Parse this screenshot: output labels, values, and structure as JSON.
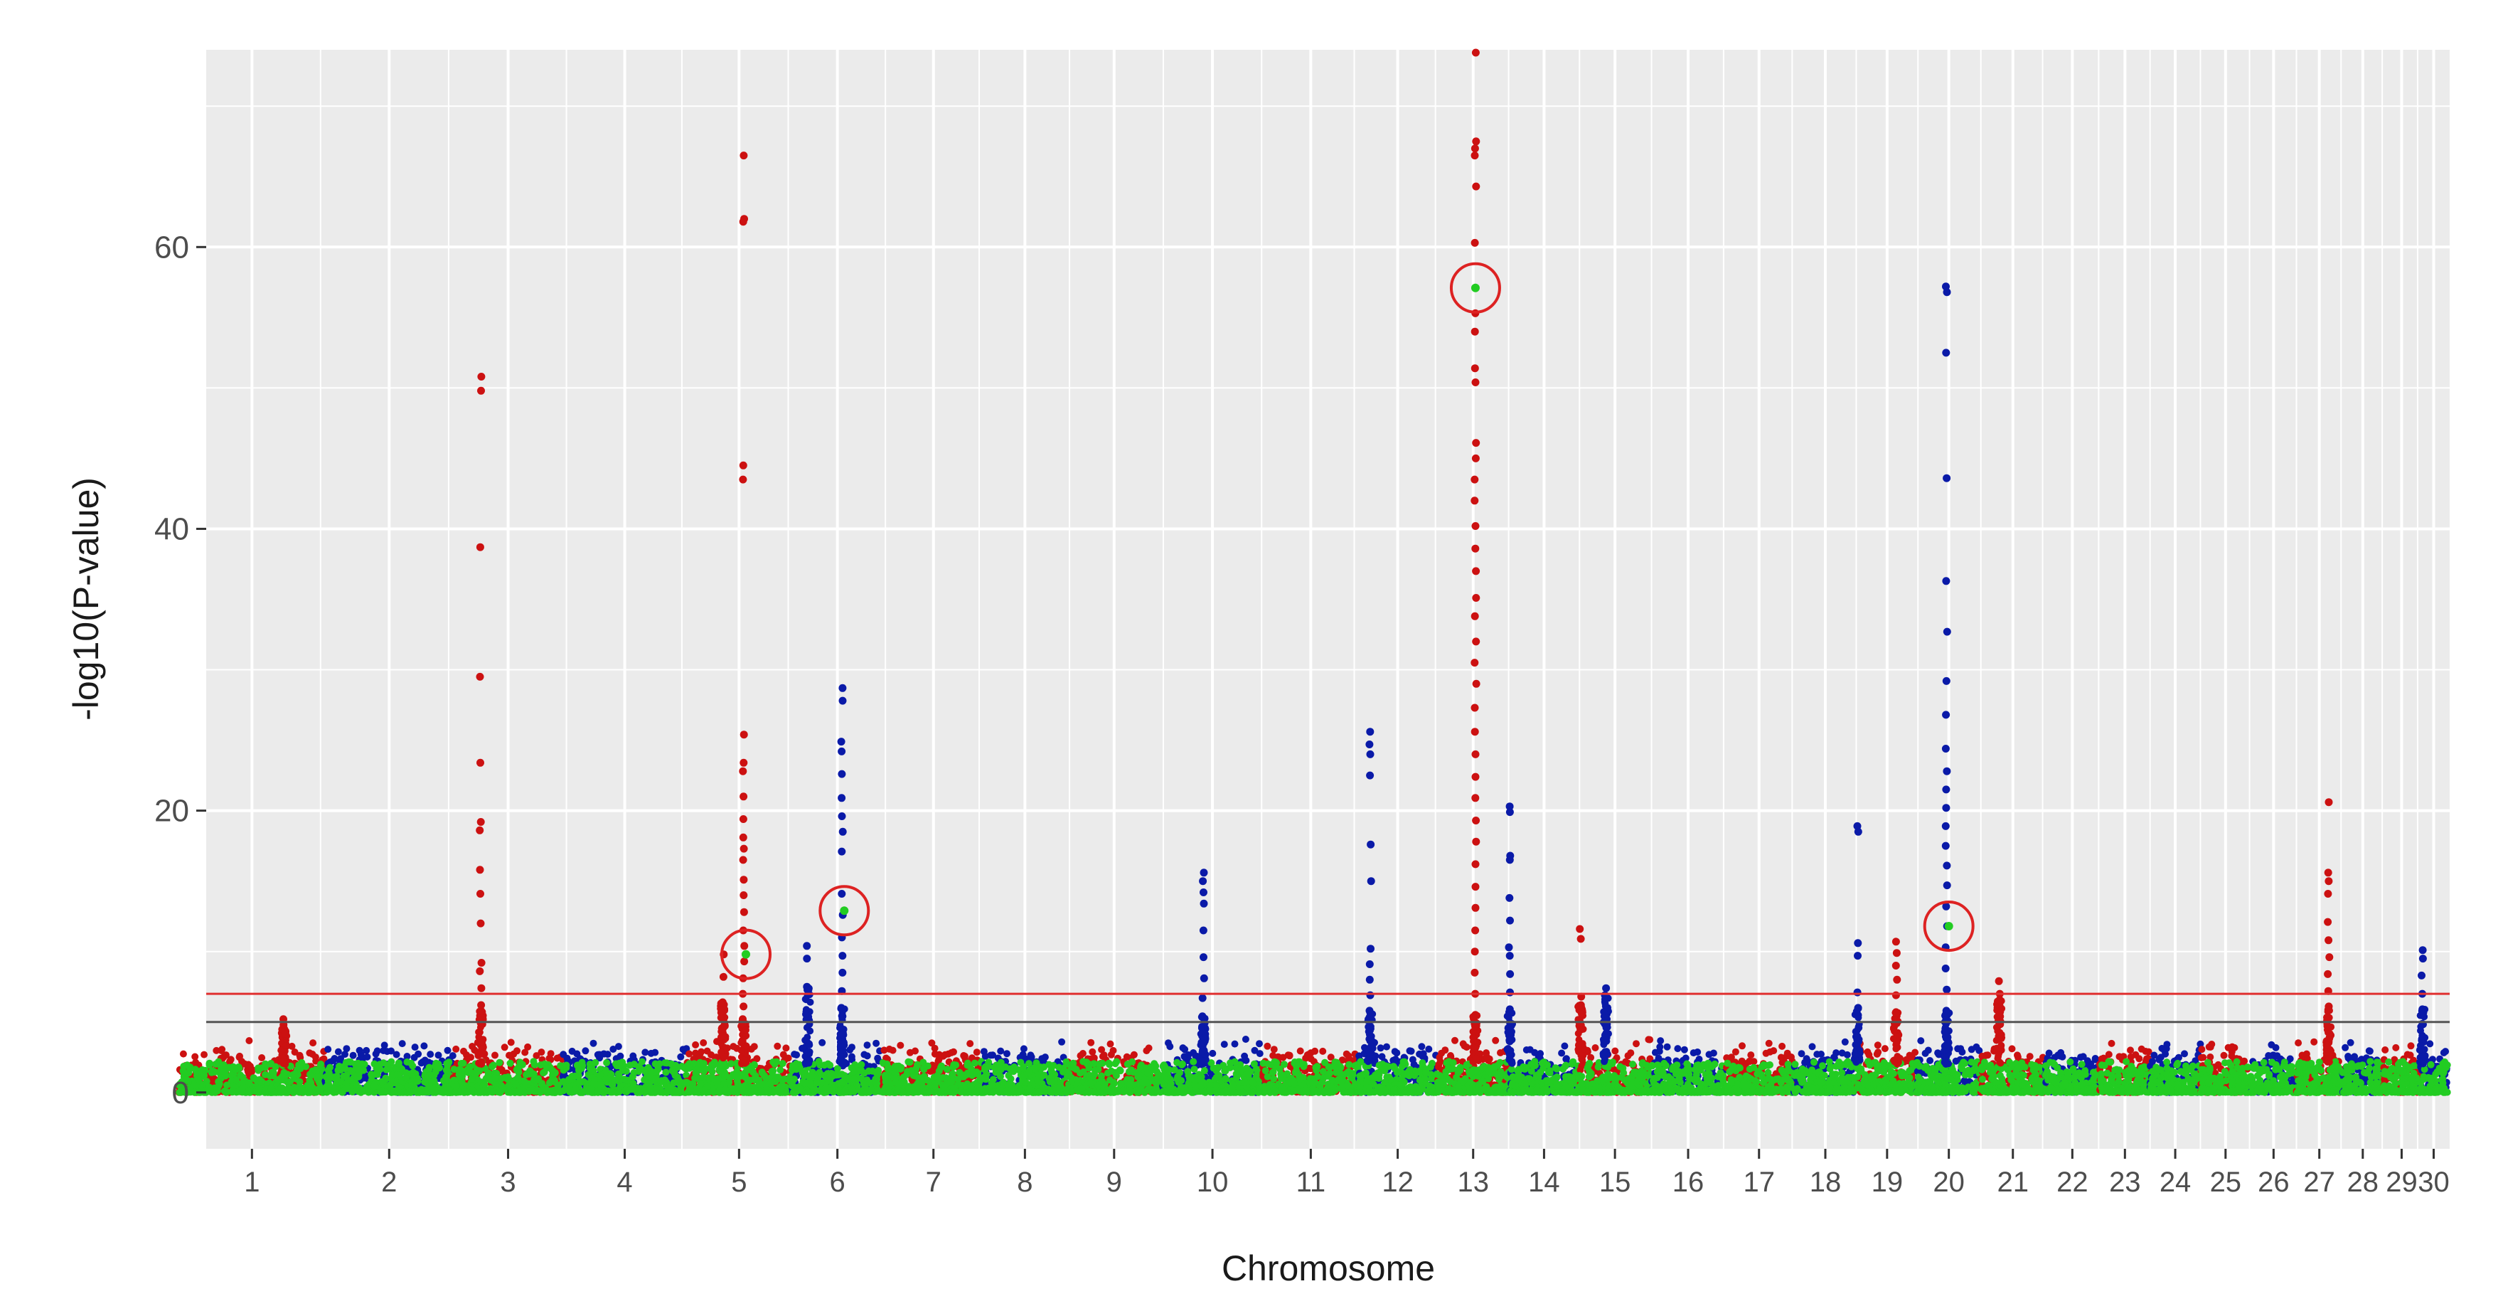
{
  "chart_data": {
    "type": "scatter",
    "subtype": "manhattan",
    "title": "",
    "xlabel": "Chromosome",
    "ylabel": "-log10(P-value)",
    "ylim": [
      -4,
      74
    ],
    "y_ticks": [
      0,
      20,
      40,
      60
    ],
    "grid": true,
    "legend": "none",
    "colors": {
      "panel_background": "#ebebeb",
      "grid": "#ffffff",
      "odd_chromosomes": "#cc1111",
      "even_chromosomes": "#0a1aa8",
      "highlighted_snps": "#22cc22",
      "threshold_red": "#e03030",
      "threshold_black": "#555555",
      "circle_marker": "#dd2222"
    },
    "thresholds": [
      {
        "value": 7.0,
        "color": "#e03030"
      },
      {
        "value": 5.0,
        "color": "#555555"
      }
    ],
    "chromosomes": [
      {
        "label": "1",
        "center": 0.8,
        "width": 3.2
      },
      {
        "label": "2",
        "center": 3.8,
        "width": 2.8
      },
      {
        "label": "3",
        "center": 6.4,
        "width": 2.4
      },
      {
        "label": "4",
        "center": 8.95,
        "width": 2.7
      },
      {
        "label": "5",
        "center": 11.45,
        "width": 2.3
      },
      {
        "label": "6",
        "center": 13.6,
        "width": 2.0
      },
      {
        "label": "7",
        "center": 15.7,
        "width": 2.2
      },
      {
        "label": "8",
        "center": 17.7,
        "width": 1.8
      },
      {
        "label": "9",
        "center": 19.65,
        "width": 2.1
      },
      {
        "label": "10",
        "center": 21.8,
        "width": 2.2
      },
      {
        "label": "11",
        "center": 23.95,
        "width": 2.1
      },
      {
        "label": "12",
        "center": 25.85,
        "width": 1.7
      },
      {
        "label": "13",
        "center": 27.5,
        "width": 1.6
      },
      {
        "label": "14",
        "center": 29.05,
        "width": 1.5
      },
      {
        "label": "15",
        "center": 30.6,
        "width": 1.6
      },
      {
        "label": "16",
        "center": 32.2,
        "width": 1.6
      },
      {
        "label": "17",
        "center": 33.75,
        "width": 1.5
      },
      {
        "label": "18",
        "center": 35.2,
        "width": 1.4
      },
      {
        "label": "19",
        "center": 36.55,
        "width": 1.3
      },
      {
        "label": "20",
        "center": 37.9,
        "width": 1.4
      },
      {
        "label": "21",
        "center": 39.3,
        "width": 1.4
      },
      {
        "label": "22",
        "center": 40.6,
        "width": 1.2
      },
      {
        "label": "23",
        "center": 41.75,
        "width": 1.1
      },
      {
        "label": "24",
        "center": 42.85,
        "width": 1.1
      },
      {
        "label": "25",
        "center": 43.95,
        "width": 1.1
      },
      {
        "label": "26",
        "center": 45.0,
        "width": 1.0
      },
      {
        "label": "27",
        "center": 46.0,
        "width": 1.0
      },
      {
        "label": "28",
        "center": 46.95,
        "width": 0.9
      },
      {
        "label": "29",
        "center": 47.8,
        "width": 0.8
      },
      {
        "label": "30",
        "center": 48.5,
        "width": 0.6
      }
    ],
    "peaks": [
      {
        "chromosome": "1",
        "x": 1.5,
        "values": [
          5.2,
          4.8,
          4.5
        ]
      },
      {
        "chromosome": "3",
        "x": 5.8,
        "values": [
          50.8,
          49.8,
          38.7,
          29.5,
          23.4,
          19.2,
          18.6,
          15.8,
          14.1,
          12.0,
          9.2,
          8.6,
          7.4,
          6.2,
          5.8
        ]
      },
      {
        "chromosome": "5",
        "x": 11.1,
        "values": [
          9.8,
          8.2,
          6.4
        ]
      },
      {
        "chromosome": "5",
        "x": 11.55,
        "values": [
          66.5,
          62.0,
          61.8,
          44.5,
          43.5,
          25.4,
          23.4,
          22.8,
          21.0,
          19.4,
          18.1,
          17.3,
          16.5,
          15.1,
          14.0,
          12.8,
          11.5,
          10.4,
          9.3,
          8.1,
          7.0,
          6.1,
          5.2
        ]
      },
      {
        "chromosome": "6",
        "x": 13.7,
        "values": [
          28.7,
          27.8,
          24.9,
          24.2,
          22.6,
          20.9,
          19.6,
          18.5,
          17.1,
          14.1,
          12.6,
          11.0,
          9.7,
          8.5,
          7.2,
          6.0
        ]
      },
      {
        "chromosome": "6",
        "x": 12.95,
        "values": [
          10.4,
          9.5,
          7.5
        ]
      },
      {
        "chromosome": "10",
        "x": 21.6,
        "values": [
          15.6,
          15.0,
          14.2,
          13.4,
          11.5,
          9.6,
          8.1,
          6.7,
          5.4
        ]
      },
      {
        "chromosome": "12",
        "x": 25.25,
        "values": [
          25.6,
          24.7,
          24.0,
          22.5,
          17.6,
          15.0,
          10.2,
          9.1,
          8.0,
          6.9,
          5.8
        ]
      },
      {
        "chromosome": "13",
        "x": 27.55,
        "values": [
          73.8,
          67.5,
          67.0,
          66.5,
          64.3,
          60.3,
          55.3,
          54.0,
          51.4,
          50.4,
          46.1,
          45.0,
          43.5,
          42.0,
          40.2,
          38.6,
          37.0,
          35.1,
          33.8,
          32.0,
          30.5,
          29.0,
          27.3,
          25.6,
          24.0,
          22.4,
          20.9,
          19.3,
          17.8,
          16.2,
          14.6,
          13.1,
          11.5,
          10.0,
          8.5,
          7.0,
          5.5
        ]
      },
      {
        "chromosome": "14",
        "x": 28.3,
        "values": [
          20.3,
          19.9,
          16.8,
          16.5,
          13.8,
          12.2,
          10.3,
          9.7,
          8.4,
          7.1,
          5.9
        ]
      },
      {
        "chromosome": "15",
        "x": 29.85,
        "values": [
          11.6,
          10.9,
          6.8,
          6.2
        ]
      },
      {
        "chromosome": "16",
        "x": 30.4,
        "values": [
          7.4,
          6.9
        ]
      },
      {
        "chromosome": "18",
        "x": 35.9,
        "values": [
          18.9,
          18.5,
          10.6,
          9.7,
          7.1,
          6.0
        ]
      },
      {
        "chromosome": "19",
        "x": 36.75,
        "values": [
          10.7,
          9.9,
          9.0,
          8.0,
          6.9,
          5.7
        ]
      },
      {
        "chromosome": "20",
        "x": 37.85,
        "values": [
          57.2,
          56.8,
          52.5,
          43.6,
          36.3,
          32.7,
          29.2,
          26.8,
          24.4,
          22.8,
          21.5,
          20.2,
          18.9,
          17.5,
          16.1,
          14.7,
          13.2,
          11.8,
          10.3,
          8.8,
          7.3,
          5.8
        ]
      },
      {
        "chromosome": "21",
        "x": 39.0,
        "values": [
          7.9,
          7.0
        ]
      },
      {
        "chromosome": "27",
        "x": 46.2,
        "values": [
          20.6,
          15.6,
          15.0,
          14.1,
          12.1,
          10.8,
          9.6,
          8.4,
          7.2,
          6.1
        ]
      },
      {
        "chromosome": "30",
        "x": 48.25,
        "values": [
          10.1,
          9.5,
          8.3,
          7.0,
          5.9
        ]
      }
    ],
    "highlighted_points": [
      {
        "chromosome": "5",
        "x": 11.6,
        "y": 9.8
      },
      {
        "chromosome": "6",
        "x": 13.75,
        "y": 12.9
      },
      {
        "chromosome": "13",
        "x": 27.55,
        "y": 57.1
      },
      {
        "chromosome": "20",
        "x": 37.9,
        "y": 11.8
      }
    ]
  }
}
